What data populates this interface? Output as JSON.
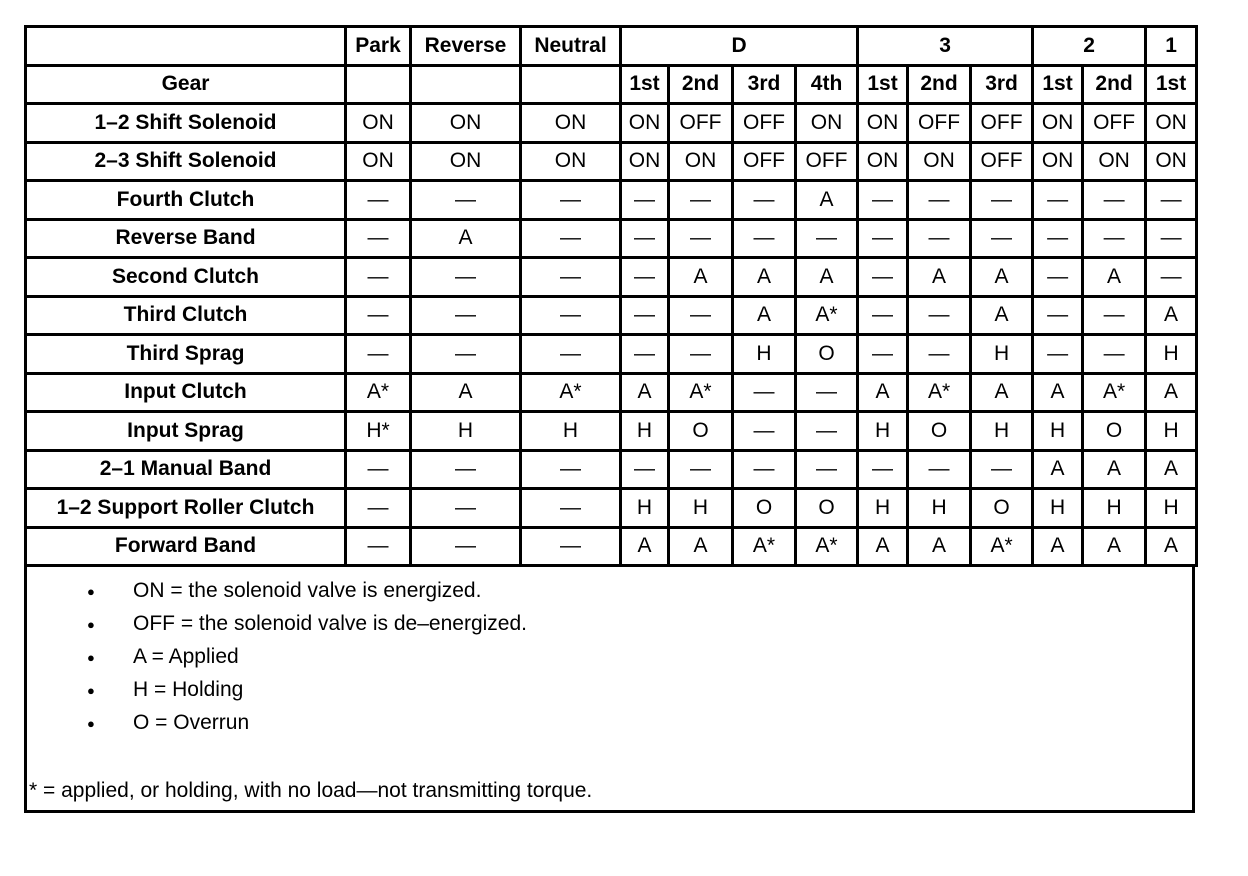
{
  "header": {
    "top": [
      "",
      "Park",
      "Reverse",
      "Neutral",
      "D",
      "3",
      "2",
      "1"
    ],
    "top_spans": [
      1,
      1,
      1,
      1,
      4,
      3,
      2,
      1
    ],
    "gear_label": "Gear",
    "sub": [
      "",
      "",
      "",
      "1st",
      "2nd",
      "3rd",
      "4th",
      "1st",
      "2nd",
      "3rd",
      "1st",
      "2nd",
      "1st"
    ]
  },
  "rows": [
    {
      "label": "1–2 Shift Solenoid",
      "cells": [
        "ON",
        "ON",
        "ON",
        "ON",
        "OFF",
        "OFF",
        "ON",
        "ON",
        "OFF",
        "OFF",
        "ON",
        "OFF",
        "ON"
      ]
    },
    {
      "label": "2–3 Shift Solenoid",
      "cells": [
        "ON",
        "ON",
        "ON",
        "ON",
        "ON",
        "OFF",
        "OFF",
        "ON",
        "ON",
        "OFF",
        "ON",
        "ON",
        "ON"
      ]
    },
    {
      "label": "Fourth Clutch",
      "cells": [
        "—",
        "—",
        "—",
        "—",
        "—",
        "—",
        "A",
        "—",
        "—",
        "—",
        "—",
        "—",
        "—"
      ]
    },
    {
      "label": "Reverse Band",
      "cells": [
        "—",
        "A",
        "—",
        "—",
        "—",
        "—",
        "—",
        "—",
        "—",
        "—",
        "—",
        "—",
        "—"
      ]
    },
    {
      "label": "Second Clutch",
      "cells": [
        "—",
        "—",
        "—",
        "—",
        "A",
        "A",
        "A",
        "—",
        "A",
        "A",
        "—",
        "A",
        "—"
      ]
    },
    {
      "label": "Third Clutch",
      "cells": [
        "—",
        "—",
        "—",
        "—",
        "—",
        "A",
        "A*",
        "—",
        "—",
        "A",
        "—",
        "—",
        "A"
      ]
    },
    {
      "label": "Third Sprag",
      "cells": [
        "—",
        "—",
        "—",
        "—",
        "—",
        "H",
        "O",
        "—",
        "—",
        "H",
        "—",
        "—",
        "H"
      ]
    },
    {
      "label": "Input Clutch",
      "cells": [
        "A*",
        "A",
        "A*",
        "A",
        "A*",
        "—",
        "—",
        "A",
        "A*",
        "A",
        "A",
        "A*",
        "A"
      ]
    },
    {
      "label": "Input Sprag",
      "cells": [
        "H*",
        "H",
        "H",
        "H",
        "O",
        "—",
        "—",
        "H",
        "O",
        "H",
        "H",
        "O",
        "H"
      ]
    },
    {
      "label": "2–1 Manual Band",
      "cells": [
        "—",
        "—",
        "—",
        "—",
        "—",
        "—",
        "—",
        "—",
        "—",
        "—",
        "A",
        "A",
        "A"
      ]
    },
    {
      "label": "1–2 Support Roller Clutch",
      "cells": [
        "—",
        "—",
        "—",
        "H",
        "H",
        "O",
        "O",
        "H",
        "H",
        "O",
        "H",
        "H",
        "H"
      ]
    },
    {
      "label": "Forward Band",
      "cells": [
        "—",
        "—",
        "—",
        "A",
        "A",
        "A*",
        "A*",
        "A",
        "A",
        "A*",
        "A",
        "A",
        "A"
      ]
    }
  ],
  "notes": {
    "items": [
      "ON = the solenoid valve is energized.",
      "OFF = the solenoid valve is de–energized.",
      "A = Applied",
      "H = Holding",
      "O = Overrun"
    ],
    "footnote": "* = applied, or holding, with no load—not transmitting torque."
  }
}
